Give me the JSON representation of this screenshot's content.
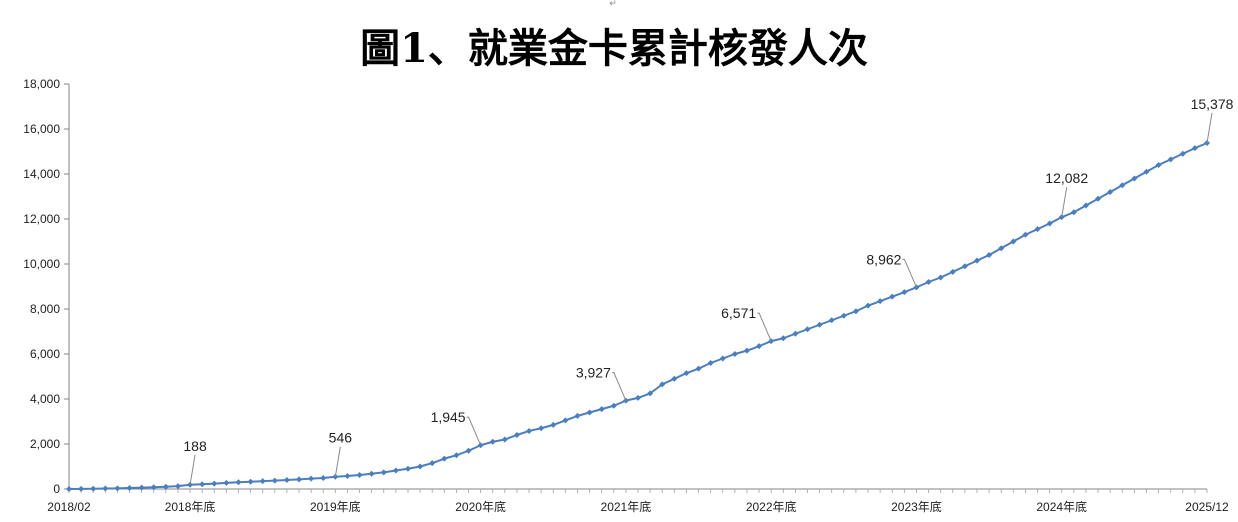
{
  "chart_data": {
    "type": "line",
    "title": "圖1、就業金卡累計核發人次",
    "top_mark": "↵",
    "ylim": [
      0,
      18000
    ],
    "y_ticks": [
      "0",
      "2,000",
      "4,000",
      "6,000",
      "8,000",
      "10,000",
      "12,000",
      "14,000",
      "16,000",
      "18,000"
    ],
    "x_tick_labels": [
      {
        "label": "2018/02",
        "month_index": 0
      },
      {
        "label": "2018年底",
        "month_index": 10
      },
      {
        "label": "2019年底",
        "month_index": 22
      },
      {
        "label": "2020年底",
        "month_index": 34
      },
      {
        "label": "2021年底",
        "month_index": 46
      },
      {
        "label": "2022年底",
        "month_index": 58
      },
      {
        "label": "2023年底",
        "month_index": 70
      },
      {
        "label": "2024年底",
        "month_index": 82
      },
      {
        "label": "2025/12",
        "month_index": 94
      }
    ],
    "color": "#4A7EC1",
    "grid": false,
    "series": [
      {
        "values": [
          0,
          5,
          10,
          20,
          30,
          45,
          60,
          80,
          100,
          130,
          188,
          210,
          240,
          270,
          300,
          320,
          350,
          370,
          400,
          430,
          460,
          490,
          546,
          580,
          620,
          680,
          740,
          820,
          900,
          1000,
          1150,
          1350,
          1500,
          1700,
          1945,
          2100,
          2200,
          2400,
          2580,
          2700,
          2850,
          3050,
          3250,
          3400,
          3550,
          3700,
          3927,
          4050,
          4250,
          4650,
          4900,
          5150,
          5350,
          5600,
          5800,
          6000,
          6150,
          6350,
          6571,
          6700,
          6900,
          7100,
          7300,
          7500,
          7700,
          7900,
          8150,
          8350,
          8550,
          8750,
          8962,
          9200,
          9400,
          9650,
          9900,
          10150,
          10400,
          10700,
          11000,
          11300,
          11550,
          11800,
          12082,
          12300,
          12600,
          12900,
          13200,
          13500,
          13800,
          14100,
          14400,
          14650,
          14900,
          15150,
          15378
        ]
      }
    ],
    "data_labels": [
      {
        "month_index": 10,
        "text": "188",
        "anchor": "above"
      },
      {
        "month_index": 22,
        "text": "546",
        "anchor": "above"
      },
      {
        "month_index": 34,
        "text": "1,945",
        "anchor": "left"
      },
      {
        "month_index": 46,
        "text": "3,927",
        "anchor": "left"
      },
      {
        "month_index": 58,
        "text": "6,571",
        "anchor": "left"
      },
      {
        "month_index": 70,
        "text": "8,962",
        "anchor": "left"
      },
      {
        "month_index": 82,
        "text": "12,082",
        "anchor": "above"
      },
      {
        "month_index": 94,
        "text": "15,378",
        "anchor": "above"
      }
    ]
  }
}
